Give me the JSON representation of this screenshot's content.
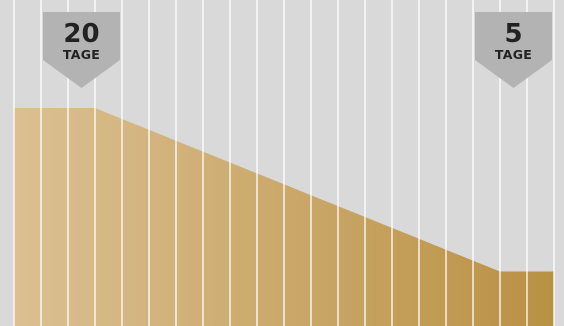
{
  "chart_data": {
    "type": "area",
    "title": "",
    "xlabel": "",
    "ylabel": "",
    "grid": true,
    "x": [
      0,
      1,
      2,
      3,
      4,
      5,
      6,
      7,
      8,
      9,
      10,
      11,
      12,
      13,
      14,
      15,
      16,
      17,
      18,
      19,
      20
    ],
    "values": [
      20,
      20,
      20,
      20,
      19,
      18,
      17,
      16,
      15,
      14,
      13,
      12,
      11,
      10,
      9,
      8,
      7,
      6,
      5,
      5,
      5
    ],
    "ylim": [
      0,
      26
    ],
    "annotations": [
      {
        "id": "start",
        "number": "20",
        "unit": "TAGE",
        "x_range": [
          1,
          4
        ]
      },
      {
        "id": "end",
        "number": "5",
        "unit": "TAGE",
        "x_range": [
          17,
          20
        ]
      }
    ]
  },
  "colors": {
    "background": "#d9d9d9",
    "area_light": "#dcc092",
    "area_dark": "#b99143",
    "badge": "#b3b3b3",
    "badge_text": "#222222",
    "gridline": "#ffffff"
  }
}
